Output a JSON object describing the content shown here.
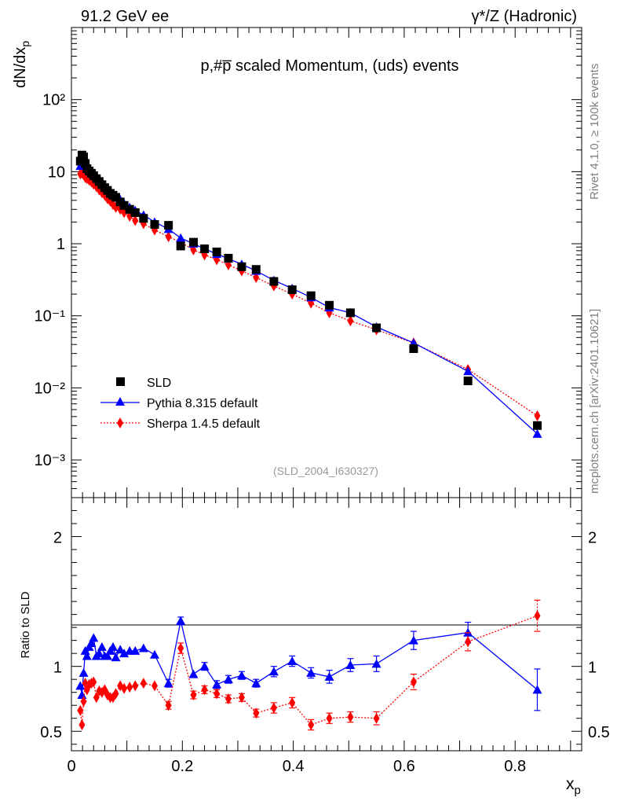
{
  "header": {
    "left": "91.2 GeV ee",
    "right": "γ*/Z (Hadronic)",
    "side_rivet": "Rivet 4.1.0, ≥ 100k events",
    "side_mcplots": "mcplots.cern.ch [arXiv:2401.10621]"
  },
  "colors": {
    "data": "#000000",
    "pythia": "#0000ff",
    "sherpa": "#ff0000",
    "watermark": "#999999"
  },
  "chart_data": [
    {
      "type": "scatter",
      "panel": "main",
      "yscale": "log",
      "title": "p,#p̅ scaled Momentum, (uds) events",
      "xlabel": "",
      "ylabel": "dN/dx_p",
      "ylabel_main": "dN/dx",
      "ylabel_sub": "p",
      "xlim": [
        0,
        0.92
      ],
      "ylim": [
        0.0003,
        1000
      ],
      "ytick_labels": [
        "10⁻³",
        "10⁻²",
        "10⁻¹",
        "1",
        "10",
        "10²"
      ],
      "ytick_values": [
        0.001,
        0.01,
        0.1,
        1,
        10,
        100
      ],
      "watermark": "(SLD_2004_I630327)",
      "legend_position": "bottom-left",
      "series": [
        {
          "name": "SLD",
          "marker": "square",
          "x": [
            0.016,
            0.019,
            0.022,
            0.025,
            0.028,
            0.032,
            0.036,
            0.04,
            0.045,
            0.05,
            0.055,
            0.06,
            0.065,
            0.07,
            0.075,
            0.08,
            0.088,
            0.095,
            0.105,
            0.115,
            0.13,
            0.15,
            0.175,
            0.197,
            0.22,
            0.24,
            0.262,
            0.283,
            0.307,
            0.333,
            0.365,
            0.398,
            0.432,
            0.465,
            0.503,
            0.55,
            0.617,
            0.715,
            0.84
          ],
          "y": [
            14.0,
            17.0,
            16.0,
            13.0,
            11.0,
            10.2,
            9.5,
            8.8,
            8.0,
            7.3,
            6.6,
            6.0,
            5.5,
            5.0,
            4.7,
            4.4,
            3.8,
            3.4,
            3.0,
            2.7,
            2.25,
            1.85,
            1.8,
            0.93,
            1.05,
            0.85,
            0.77,
            0.63,
            0.48,
            0.44,
            0.3,
            0.23,
            0.19,
            0.14,
            0.11,
            0.068,
            0.035,
            0.0125,
            0.003
          ]
        },
        {
          "name": "Pythia 8.315 default",
          "marker": "triangle",
          "line": "solid",
          "x": [
            0.016,
            0.019,
            0.022,
            0.025,
            0.028,
            0.032,
            0.036,
            0.04,
            0.045,
            0.05,
            0.055,
            0.06,
            0.065,
            0.07,
            0.075,
            0.08,
            0.088,
            0.095,
            0.105,
            0.115,
            0.13,
            0.15,
            0.175,
            0.197,
            0.22,
            0.24,
            0.262,
            0.283,
            0.307,
            0.333,
            0.365,
            0.398,
            0.432,
            0.465,
            0.503,
            0.55,
            0.617,
            0.715,
            0.84
          ],
          "y": [
            12.0,
            13.0,
            12.5,
            12.0,
            11.0,
            10.5,
            9.8,
            9.2,
            8.6,
            7.8,
            7.2,
            6.4,
            5.8,
            5.3,
            4.9,
            4.5,
            4.1,
            3.6,
            3.2,
            2.9,
            2.5,
            2.0,
            1.6,
            1.2,
            1.0,
            0.85,
            0.72,
            0.62,
            0.52,
            0.42,
            0.31,
            0.24,
            0.18,
            0.13,
            0.11,
            0.07,
            0.042,
            0.017,
            0.0023
          ]
        },
        {
          "name": "Sherpa 1.4.5 default",
          "marker": "diamond",
          "line": "dotted",
          "x": [
            0.016,
            0.019,
            0.022,
            0.025,
            0.028,
            0.032,
            0.036,
            0.04,
            0.045,
            0.05,
            0.055,
            0.06,
            0.065,
            0.07,
            0.075,
            0.08,
            0.088,
            0.095,
            0.105,
            0.115,
            0.13,
            0.15,
            0.175,
            0.197,
            0.22,
            0.24,
            0.262,
            0.283,
            0.307,
            0.333,
            0.365,
            0.398,
            0.432,
            0.465,
            0.503,
            0.55,
            0.617,
            0.715,
            0.84
          ],
          "y": [
            9.3,
            9.5,
            9.0,
            8.3,
            8.0,
            7.6,
            7.2,
            6.7,
            6.2,
            5.6,
            5.1,
            4.7,
            4.2,
            3.9,
            3.5,
            3.2,
            3.0,
            2.7,
            2.4,
            2.1,
            1.9,
            1.55,
            1.25,
            1.05,
            0.82,
            0.7,
            0.6,
            0.51,
            0.42,
            0.34,
            0.26,
            0.2,
            0.15,
            0.11,
            0.085,
            0.064,
            0.042,
            0.018,
            0.0041
          ]
        }
      ]
    },
    {
      "type": "line",
      "panel": "ratio",
      "title": "",
      "xlabel": "x_p",
      "xlabel_main": "x",
      "xlabel_sub": "p",
      "ylabel": "Ratio to SLD",
      "xlim": [
        0,
        0.92
      ],
      "ylim": [
        0.35,
        2.3
      ],
      "ytick_labels": [
        "0.5",
        "1",
        "2"
      ],
      "ytick_values": [
        0.5,
        1,
        2
      ],
      "xtick_labels": [
        "0",
        "0.2",
        "0.4",
        "0.6",
        "0.8"
      ],
      "xtick_values": [
        0,
        0.2,
        0.4,
        0.6,
        0.8
      ],
      "series": [
        {
          "name": "Pythia 8.315 default",
          "marker": "triangle",
          "line": "solid",
          "x": [
            0.016,
            0.019,
            0.022,
            0.025,
            0.028,
            0.032,
            0.036,
            0.04,
            0.045,
            0.05,
            0.055,
            0.06,
            0.065,
            0.07,
            0.075,
            0.08,
            0.088,
            0.095,
            0.105,
            0.115,
            0.13,
            0.15,
            0.175,
            0.197,
            0.22,
            0.24,
            0.262,
            0.283,
            0.307,
            0.333,
            0.365,
            0.398,
            0.432,
            0.465,
            0.503,
            0.55,
            0.617,
            0.715,
            0.84
          ],
          "y": [
            0.85,
            0.78,
            0.95,
            1.12,
            1.08,
            1.15,
            1.18,
            1.22,
            1.08,
            1.1,
            1.15,
            1.08,
            1.08,
            1.12,
            1.15,
            1.07,
            1.13,
            1.1,
            1.12,
            1.12,
            1.14,
            1.09,
            0.87,
            1.35,
            0.94,
            1.0,
            0.86,
            0.9,
            0.93,
            0.87,
            0.96,
            1.04,
            0.95,
            0.92,
            1.01,
            1.02,
            1.2,
            1.26,
            0.82
          ],
          "err": [
            0.02,
            0.02,
            0.02,
            0.02,
            0.02,
            0.02,
            0.02,
            0.02,
            0.02,
            0.02,
            0.02,
            0.02,
            0.02,
            0.02,
            0.02,
            0.02,
            0.02,
            0.02,
            0.02,
            0.02,
            0.02,
            0.02,
            0.03,
            0.03,
            0.02,
            0.03,
            0.03,
            0.03,
            0.03,
            0.03,
            0.04,
            0.04,
            0.04,
            0.05,
            0.05,
            0.06,
            0.07,
            0.08,
            0.16
          ]
        },
        {
          "name": "Sherpa 1.4.5 default",
          "marker": "diamond",
          "line": "dotted",
          "x": [
            0.016,
            0.019,
            0.022,
            0.025,
            0.028,
            0.032,
            0.036,
            0.04,
            0.045,
            0.05,
            0.055,
            0.06,
            0.065,
            0.07,
            0.075,
            0.08,
            0.088,
            0.095,
            0.105,
            0.115,
            0.13,
            0.15,
            0.175,
            0.197,
            0.22,
            0.24,
            0.262,
            0.283,
            0.307,
            0.333,
            0.365,
            0.398,
            0.432,
            0.465,
            0.503,
            0.55,
            0.617,
            0.715,
            0.84
          ],
          "y": [
            0.66,
            0.55,
            0.73,
            0.87,
            0.82,
            0.86,
            0.87,
            0.88,
            0.76,
            0.81,
            0.8,
            0.82,
            0.78,
            0.76,
            0.76,
            0.79,
            0.85,
            0.83,
            0.84,
            0.85,
            0.87,
            0.85,
            0.7,
            1.14,
            0.78,
            0.82,
            0.79,
            0.75,
            0.76,
            0.64,
            0.68,
            0.72,
            0.55,
            0.6,
            0.61,
            0.6,
            0.88,
            1.19,
            1.39
          ],
          "err": [
            0.02,
            0.02,
            0.02,
            0.02,
            0.02,
            0.02,
            0.02,
            0.02,
            0.02,
            0.02,
            0.02,
            0.02,
            0.02,
            0.02,
            0.02,
            0.02,
            0.02,
            0.02,
            0.02,
            0.02,
            0.02,
            0.02,
            0.03,
            0.04,
            0.03,
            0.03,
            0.03,
            0.03,
            0.03,
            0.03,
            0.04,
            0.04,
            0.04,
            0.04,
            0.04,
            0.05,
            0.06,
            0.07,
            0.12
          ]
        }
      ]
    }
  ]
}
